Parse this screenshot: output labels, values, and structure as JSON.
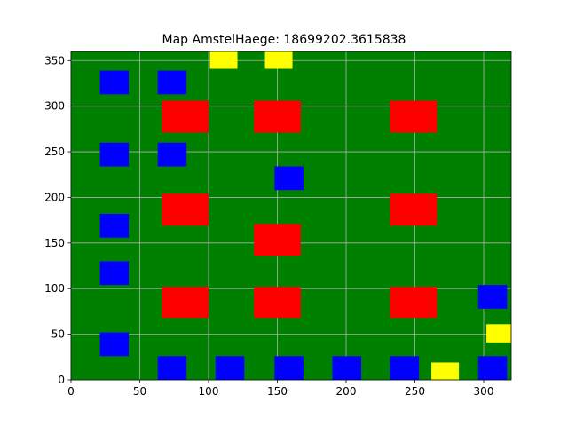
{
  "chart_data": {
    "type": "heatmap",
    "title": "Map AmstelHaege: 18699202.3615838",
    "xlabel": "",
    "ylabel": "",
    "xlim": [
      0,
      320
    ],
    "ylim": [
      0,
      360
    ],
    "x_ticks": [
      0,
      50,
      100,
      150,
      200,
      250,
      300
    ],
    "y_ticks": [
      0,
      50,
      100,
      150,
      200,
      250,
      300,
      350
    ],
    "grid": true,
    "colors": {
      "background": "#008000",
      "water": "#0000ff",
      "red": "#ff0000",
      "yellow": "#ffff00",
      "grid": "#b0b0b0"
    },
    "rectangles": [
      {
        "kind": "water",
        "x0": 21,
        "y0": 313,
        "x1": 42,
        "y1": 339
      },
      {
        "kind": "water",
        "x0": 63,
        "y0": 313,
        "x1": 84,
        "y1": 339
      },
      {
        "kind": "water",
        "x0": 21,
        "y0": 234,
        "x1": 42,
        "y1": 260
      },
      {
        "kind": "water",
        "x0": 63,
        "y0": 234,
        "x1": 84,
        "y1": 260
      },
      {
        "kind": "water",
        "x0": 148,
        "y0": 208,
        "x1": 169,
        "y1": 234
      },
      {
        "kind": "water",
        "x0": 21,
        "y0": 156,
        "x1": 42,
        "y1": 182
      },
      {
        "kind": "water",
        "x0": 21,
        "y0": 104,
        "x1": 42,
        "y1": 130
      },
      {
        "kind": "water",
        "x0": 296,
        "y0": 78,
        "x1": 317,
        "y1": 104
      },
      {
        "kind": "water",
        "x0": 21,
        "y0": 26,
        "x1": 42,
        "y1": 52
      },
      {
        "kind": "water",
        "x0": 63,
        "y0": 0,
        "x1": 84,
        "y1": 26
      },
      {
        "kind": "water",
        "x0": 105,
        "y0": 0,
        "x1": 126,
        "y1": 26
      },
      {
        "kind": "water",
        "x0": 148,
        "y0": 0,
        "x1": 169,
        "y1": 26
      },
      {
        "kind": "water",
        "x0": 190,
        "y0": 0,
        "x1": 211,
        "y1": 26
      },
      {
        "kind": "water",
        "x0": 232,
        "y0": 0,
        "x1": 253,
        "y1": 26
      },
      {
        "kind": "water",
        "x0": 296,
        "y0": 0,
        "x1": 317,
        "y1": 26
      },
      {
        "kind": "red",
        "x0": 66,
        "y0": 271,
        "x1": 100,
        "y1": 306
      },
      {
        "kind": "red",
        "x0": 133,
        "y0": 271,
        "x1": 167,
        "y1": 306
      },
      {
        "kind": "red",
        "x0": 232,
        "y0": 271,
        "x1": 266,
        "y1": 306
      },
      {
        "kind": "red",
        "x0": 66,
        "y0": 169,
        "x1": 100,
        "y1": 204
      },
      {
        "kind": "red",
        "x0": 232,
        "y0": 169,
        "x1": 266,
        "y1": 204
      },
      {
        "kind": "red",
        "x0": 133,
        "y0": 136,
        "x1": 167,
        "y1": 171
      },
      {
        "kind": "red",
        "x0": 66,
        "y0": 68,
        "x1": 100,
        "y1": 102
      },
      {
        "kind": "red",
        "x0": 133,
        "y0": 68,
        "x1": 167,
        "y1": 102
      },
      {
        "kind": "red",
        "x0": 232,
        "y0": 68,
        "x1": 266,
        "y1": 102
      },
      {
        "kind": "yellow",
        "x0": 101,
        "y0": 341,
        "x1": 121,
        "y1": 360
      },
      {
        "kind": "yellow",
        "x0": 141,
        "y0": 341,
        "x1": 161,
        "y1": 360
      },
      {
        "kind": "yellow",
        "x0": 302,
        "y0": 41,
        "x1": 320,
        "y1": 61
      },
      {
        "kind": "yellow",
        "x0": 262,
        "y0": 0,
        "x1": 282,
        "y1": 19
      }
    ]
  }
}
